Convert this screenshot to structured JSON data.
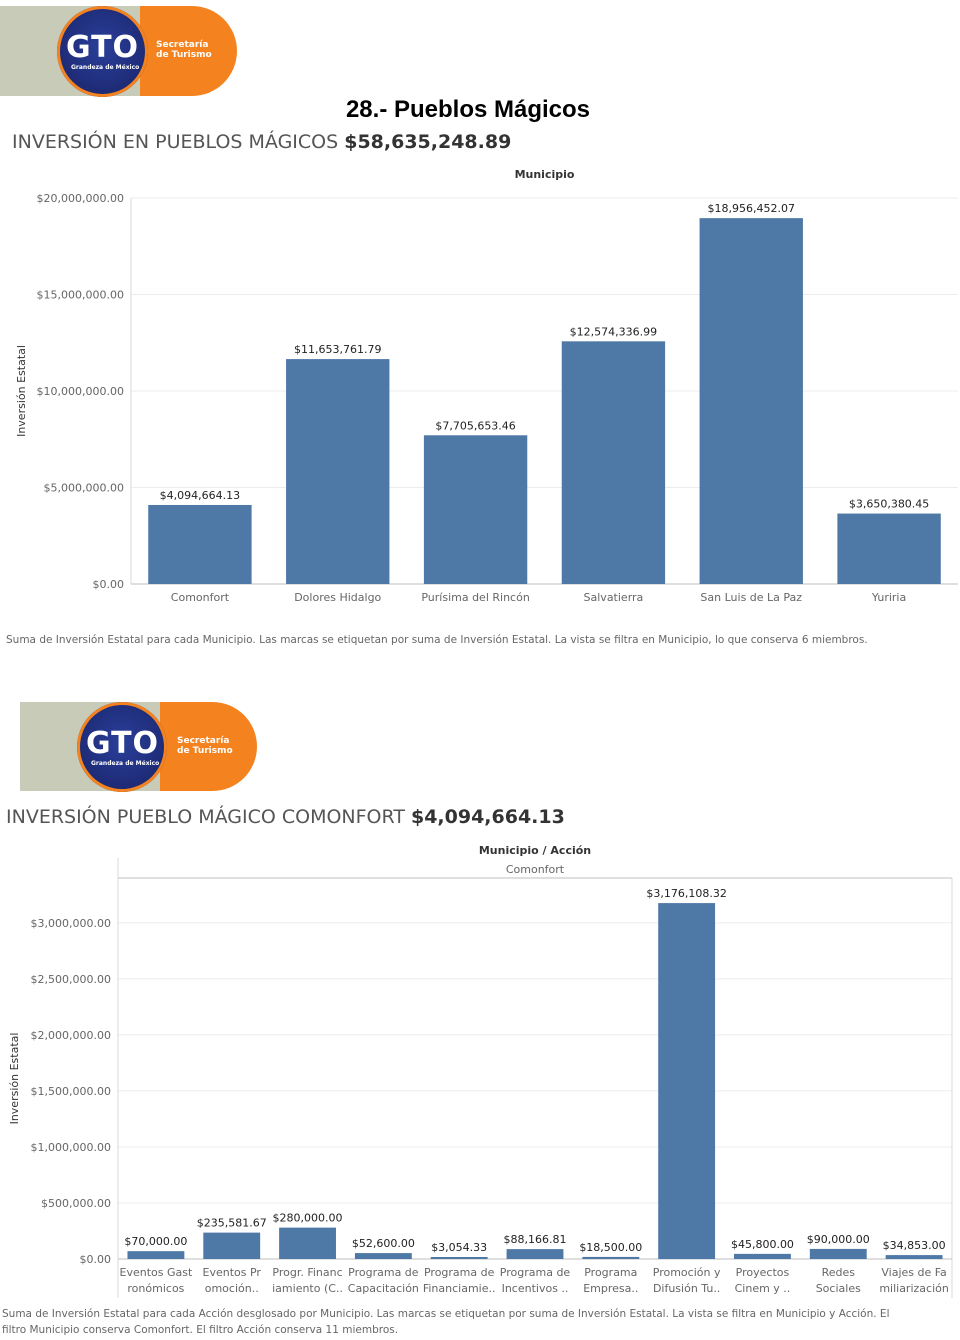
{
  "page_title": "28.- Pueblos Mágicos",
  "logo": {
    "brand": "GTO",
    "tagline": "Grandeza de México",
    "secretaria_line1": "Secretaría",
    "secretaria_line2": "de Turismo",
    "colors": {
      "band": "#c9cbb9",
      "pill": "#f3821f",
      "circle": "#1f2d7a"
    }
  },
  "section1": {
    "title_prefix": "INVERSIÓN EN PUEBLOS MÁGICOS",
    "title_amount": "$58,635,248.89",
    "caption": "Suma de Inversión Estatal para cada Municipio.  Las marcas se etiquetan por suma de Inversión Estatal. La vista se filtra en Municipio, lo que conserva 6 miembros."
  },
  "section2": {
    "title_prefix": "INVERSIÓN PUEBLO MÁGICO COMONFORT",
    "title_amount": "$4,094,664.13",
    "caption_line1": "Suma de Inversión Estatal para cada Acción desglosado por Municipio.  Las marcas se etiquetan por suma de Inversión Estatal. La vista se filtra en Municipio y Acción. El",
    "caption_line2": "filtro Municipio conserva Comonfort. El filtro Acción conserva 11 miembros."
  },
  "chart_data": [
    {
      "type": "bar",
      "header": "Municipio",
      "ylabel": "Inversión Estatal",
      "ylim": [
        0,
        20000000
      ],
      "yticks": [
        0,
        5000000,
        10000000,
        15000000,
        20000000
      ],
      "ytick_labels": [
        "$0.00",
        "$5,000,000.00",
        "$10,000,000.00",
        "$15,000,000.00",
        "$20,000,000.00"
      ],
      "categories": [
        "Comonfort",
        "Dolores Hidalgo",
        "Purísima del Rincón",
        "Salvatierra",
        "San Luis de La Paz",
        "Yuriria"
      ],
      "values": [
        4094664.13,
        11653761.79,
        7705653.46,
        12574336.99,
        18956452.07,
        3650380.45
      ],
      "labels": [
        "$4,094,664.13",
        "$11,653,761.79",
        "$7,705,653.46",
        "$12,574,336.99",
        "$18,956,452.07",
        "$3,650,380.45"
      ],
      "bar_color": "#4e79a7",
      "grid": true
    },
    {
      "type": "bar",
      "header": "Municipio / Acción",
      "subheader": "Comonfort",
      "ylabel": "Inversión Estatal",
      "ylim": [
        0,
        3400000
      ],
      "yticks": [
        0,
        500000,
        1000000,
        1500000,
        2000000,
        2500000,
        3000000
      ],
      "ytick_labels": [
        "$0.00",
        "$500,000.00",
        "$1,000,000.00",
        "$1,500,000.00",
        "$2,000,000.00",
        "$2,500,000.00",
        "$3,000,000.00"
      ],
      "categories": [
        [
          "Eventos Gast",
          "ronómicos"
        ],
        [
          "Eventos Pr",
          "omoción.."
        ],
        [
          "Progr. Financ",
          "iamiento (C.."
        ],
        [
          "Programa de",
          "Capacitación"
        ],
        [
          "Programa de",
          "Financiamie.."
        ],
        [
          "Programa de",
          "Incentivos .."
        ],
        [
          "Programa",
          "Empresa.."
        ],
        [
          "Promoción y",
          "Difusión Tu.."
        ],
        [
          "Proyectos",
          "Cinem y .."
        ],
        [
          "Redes",
          "Sociales"
        ],
        [
          "Viajes de Fa",
          "miliarización"
        ]
      ],
      "values": [
        70000.0,
        235581.67,
        280000.0,
        52600.0,
        3054.33,
        88166.81,
        18500.0,
        3176108.32,
        45800.0,
        90000.0,
        34853.0
      ],
      "labels": [
        "$70,000.00",
        "$235,581.67",
        "$280,000.00",
        "$52,600.00",
        "$3,054.33",
        "$88,166.81",
        "$18,500.00",
        "$3,176,108.32",
        "$45,800.00",
        "$90,000.00",
        "$34,853.00"
      ],
      "bar_color": "#4e79a7",
      "grid": true
    }
  ]
}
